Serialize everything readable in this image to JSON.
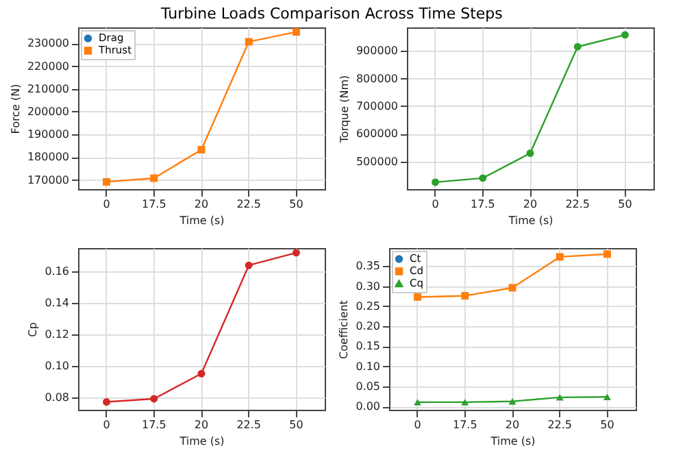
{
  "chart_data": [
    {
      "type": "line",
      "title": "Turbine Loads Comparison Across Time Steps",
      "categories": [
        "0",
        "17.5",
        "20",
        "22.5",
        "50"
      ],
      "xlabel": "Time (s)",
      "ylabel": "Force (N)",
      "ylim": [
        166000,
        237000
      ],
      "yticks": [
        170000,
        180000,
        190000,
        200000,
        210000,
        220000,
        230000
      ],
      "grid": true,
      "legend": "top left",
      "series": [
        {
          "name": "Drag",
          "color": "#1f77b4",
          "marker": "circle",
          "values": [
            null,
            null,
            null,
            null,
            null
          ]
        },
        {
          "name": "Thrust",
          "color": "#ff7f0e",
          "marker": "square",
          "values": [
            169200,
            170800,
            183300,
            230700,
            235000
          ]
        }
      ]
    },
    {
      "type": "line",
      "categories": [
        "0",
        "17.5",
        "20",
        "22.5",
        "50"
      ],
      "xlabel": "Time (s)",
      "ylabel": "Torque (Nm)",
      "ylim": [
        400000,
        985000
      ],
      "yticks": [
        500000,
        600000,
        700000,
        800000,
        900000
      ],
      "grid": true,
      "series": [
        {
          "color": "#2ca02c",
          "marker": "circle",
          "values": [
            425000,
            440000,
            530000,
            915000,
            958000
          ]
        }
      ]
    },
    {
      "type": "line",
      "categories": [
        "0",
        "17.5",
        "20",
        "22.5",
        "50"
      ],
      "xlabel": "Time (s)",
      "ylabel": "Cp",
      "ylim": [
        0.072,
        0.175
      ],
      "yticks": [
        0.08,
        {
          "value": 0.1,
          "label": "0.10"
        },
        0.12,
        0.14,
        0.16
      ],
      "grid": true,
      "series": [
        {
          "color": "#d62728",
          "marker": "circle",
          "values": [
            0.077,
            0.079,
            0.095,
            0.164,
            0.172
          ]
        }
      ]
    },
    {
      "type": "line",
      "categories": [
        "0",
        "17.5",
        "20",
        "22.5",
        "50"
      ],
      "xlabel": "Time (s)",
      "ylabel": "Coefficient",
      "ylim": [
        -0.008,
        0.395
      ],
      "yticks": [
        {
          "value": 0,
          "label": "0.00"
        },
        0.05,
        {
          "value": 0.1,
          "label": "0.10"
        },
        0.15,
        {
          "value": 0.2,
          "label": "0.20"
        },
        0.25,
        {
          "value": 0.3,
          "label": "0.30"
        },
        0.35
      ],
      "grid": true,
      "legend": "top left",
      "series": [
        {
          "name": "Ct",
          "color": "#1f77b4",
          "marker": "circle",
          "values": [
            null,
            null,
            null,
            null,
            null
          ]
        },
        {
          "name": "Cd",
          "color": "#ff7f0e",
          "marker": "square",
          "values": [
            0.273,
            0.276,
            0.296,
            0.373,
            0.38
          ]
        },
        {
          "name": "Cq",
          "color": "#2ca02c",
          "marker": "triangle",
          "values": [
            0.011,
            0.011,
            0.013,
            0.023,
            0.024
          ]
        }
      ]
    }
  ]
}
